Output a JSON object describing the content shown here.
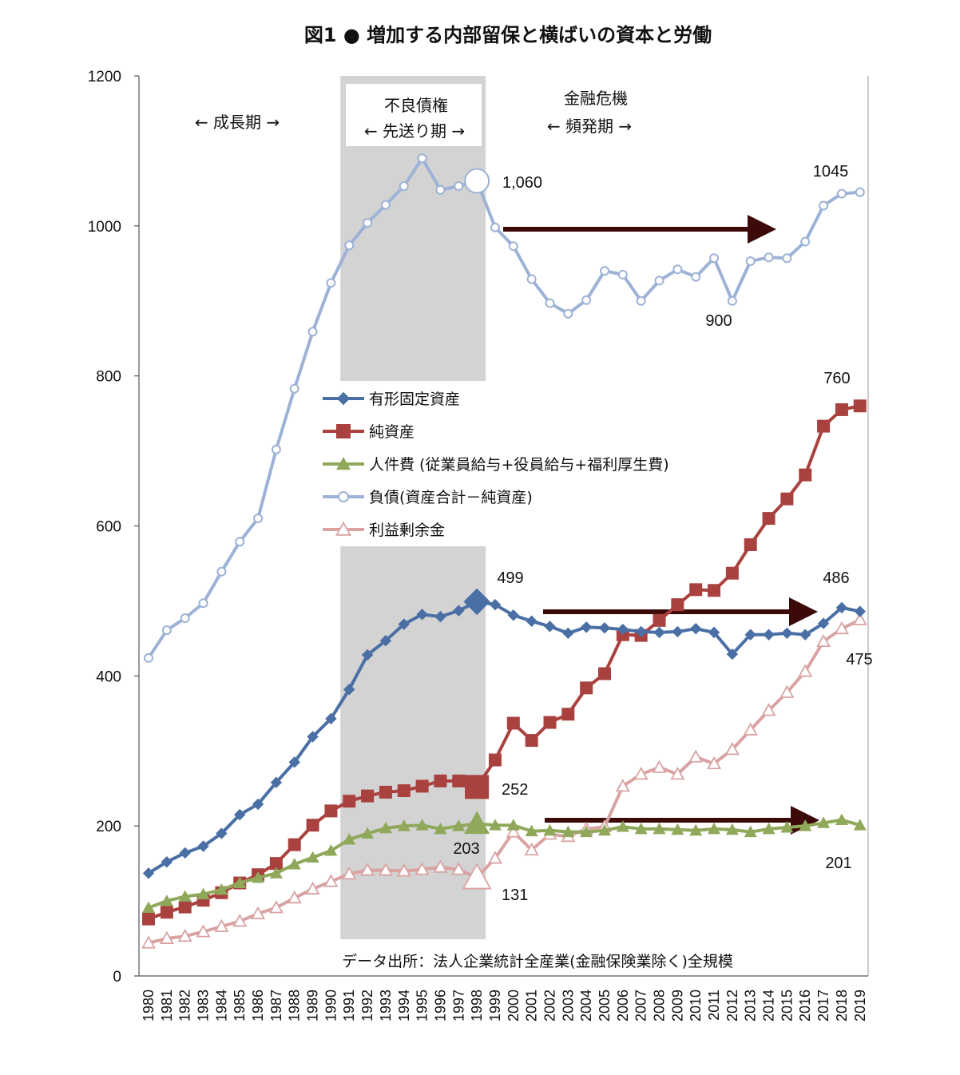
{
  "chart_data": {
    "type": "line",
    "title": "図1 ● 増加する内部留保と横ばいの資本と労働",
    "source": "データ出所：法人企業統計全産業(金融保険業除く)全規模",
    "ylim": [
      0,
      1200
    ],
    "yticks": [
      0,
      200,
      400,
      600,
      800,
      1000,
      1200
    ],
    "grid": false,
    "legend_position": "center-left",
    "categories": [
      "1980",
      "1981",
      "1982",
      "1983",
      "1984",
      "1985",
      "1986",
      "1987",
      "1988",
      "1989",
      "1990",
      "1991",
      "1992",
      "1993",
      "1994",
      "1995",
      "1996",
      "1997",
      "1998",
      "1999",
      "2000",
      "2001",
      "2002",
      "2003",
      "2004",
      "2005",
      "2006",
      "2007",
      "2008",
      "2009",
      "2010",
      "2011",
      "2012",
      "2013",
      "2014",
      "2015",
      "2016",
      "2017",
      "2018",
      "2019"
    ],
    "series": [
      {
        "name": "有形固定資産",
        "color": "#4a6fa5",
        "marker": "diamond",
        "values": [
          137,
          152,
          164,
          173,
          190,
          215,
          229,
          258,
          285,
          319,
          343,
          382,
          428,
          447,
          469,
          482,
          479,
          487,
          499,
          495,
          481,
          473,
          466,
          457,
          465,
          464,
          462,
          459,
          458,
          459,
          463,
          458,
          429,
          455,
          455,
          457,
          455,
          470,
          491,
          486
        ]
      },
      {
        "name": "純資産",
        "color": "#a9413f",
        "marker": "square",
        "values": [
          76,
          85,
          92,
          101,
          111,
          124,
          135,
          150,
          175,
          201,
          220,
          233,
          240,
          245,
          247,
          253,
          260,
          260,
          252,
          288,
          337,
          314,
          338,
          349,
          384,
          403,
          455,
          454,
          474,
          495,
          515,
          514,
          537,
          575,
          610,
          636,
          668,
          733,
          755,
          760
        ]
      },
      {
        "name": "人件費 (従業員給与+役員給与+福利厚生費)",
        "color": "#8fa85a",
        "marker": "triangle",
        "values": [
          91,
          100,
          106,
          109,
          115,
          124,
          131,
          137,
          149,
          158,
          167,
          182,
          190,
          197,
          200,
          201,
          196,
          200,
          203,
          201,
          201,
          193,
          194,
          192,
          192,
          194,
          199,
          196,
          196,
          195,
          194,
          196,
          195,
          192,
          196,
          198,
          200,
          204,
          208,
          201
        ]
      },
      {
        "name": "負債(資産合計－純資産)",
        "color": "#9db2d6",
        "marker": "circle",
        "values": [
          424,
          461,
          477,
          497,
          539,
          579,
          610,
          702,
          783,
          859,
          924,
          974,
          1004,
          1028,
          1053,
          1090,
          1048,
          1053,
          1060,
          998,
          973,
          929,
          897,
          883,
          901,
          940,
          935,
          900,
          927,
          942,
          932,
          957,
          900,
          953,
          958,
          957,
          979,
          1027,
          1043,
          1045
        ]
      },
      {
        "name": "利益剰余金",
        "color": "#d9a3a3",
        "marker": "open-triangle",
        "values": [
          44,
          50,
          53,
          59,
          66,
          73,
          83,
          91,
          104,
          116,
          126,
          136,
          141,
          141,
          140,
          142,
          145,
          142,
          131,
          157,
          192,
          168,
          189,
          186,
          196,
          199,
          253,
          269,
          278,
          269,
          292,
          283,
          302,
          328,
          354,
          378,
          406,
          446,
          463,
          475
        ]
      }
    ],
    "shaded_periods": [
      {
        "from": "1991",
        "to": "1998",
        "label_line1": "不良債権",
        "label_line2": "← 先送り期 →"
      }
    ],
    "annotations": {
      "period_growth": "← 成長期 →",
      "crisis_line1": "金融危機",
      "crisis_line2": "← 頻発期 →",
      "lbl_liab_1998": "1,060",
      "lbl_liab_2019": "1045",
      "lbl_liab_2012": "900",
      "lbl_net_2019": "760",
      "lbl_fixed_1998": "499",
      "lbl_fixed_2019": "486",
      "lbl_retained_2019": "475",
      "lbl_net_1998": "252",
      "lbl_labor_1998": "203",
      "lbl_labor_2019": "201",
      "lbl_retained_1998": "131"
    }
  }
}
